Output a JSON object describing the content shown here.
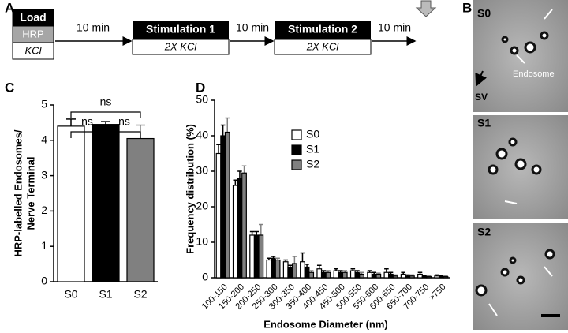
{
  "panels": [
    "A",
    "B",
    "C",
    "D"
  ],
  "protocol": {
    "load": {
      "title": "Load",
      "rows": [
        "HRP",
        "KCl"
      ]
    },
    "steps": [
      {
        "interval": "10 min",
        "title": "Stimulation 1",
        "sub": "2X KCl"
      },
      {
        "interval": "10 min",
        "title": "Stimulation 2",
        "sub": "2X KCl"
      }
    ],
    "final_interval": "10 min"
  },
  "micrographs": {
    "labels": [
      "S0",
      "S1",
      "S2"
    ],
    "annotations": [
      "Endosome",
      "SV"
    ]
  },
  "chart_data": [
    {
      "type": "bar",
      "ylabel": [
        "HRP-labelled Endosomes/",
        "Nerve Terminal"
      ],
      "categories": [
        "S0",
        "S1",
        "S2"
      ],
      "values": [
        4.4,
        4.45,
        4.05
      ],
      "errors": [
        0.2,
        0.08,
        0.38
      ],
      "colors": [
        "#ffffff",
        "#000000",
        "#808080"
      ],
      "ylim": [
        0,
        5
      ],
      "yticks": [
        0,
        1,
        2,
        3,
        4,
        5
      ],
      "annotations": [
        "ns",
        "ns",
        "ns"
      ]
    },
    {
      "type": "bar",
      "ylabel": "Frequency distribution (%)",
      "xlabel": "Endosome Diameter (nm)",
      "categories": [
        "100-150",
        "150-200",
        "200-250",
        "250-300",
        "300-350",
        "350-400",
        "400-450",
        "450-500",
        "500-550",
        "550-600",
        "600-650",
        "650-700",
        "700-750",
        ">750"
      ],
      "series": [
        {
          "name": "S0",
          "color": "#ffffff",
          "values": [
            35,
            26,
            12,
            5,
            4.5,
            4.5,
            2.5,
            2,
            2,
            1.5,
            1.5,
            1,
            1,
            0.5
          ],
          "errors": [
            2.5,
            1.5,
            1,
            0.5,
            0.5,
            2.5,
            1,
            0.5,
            0.5,
            0.5,
            1,
            0.5,
            0.5,
            0.3
          ]
        },
        {
          "name": "S1",
          "color": "#000000",
          "values": [
            40,
            28,
            12,
            5.5,
            3,
            3,
            1.5,
            1.5,
            1.5,
            1,
            1,
            0.5,
            0.3,
            0.3
          ],
          "errors": [
            3,
            2,
            1,
            0.5,
            0.5,
            0.8,
            0.5,
            0.5,
            0.5,
            0.5,
            0.5,
            0.3,
            0.2,
            0.2
          ]
        },
        {
          "name": "S2",
          "color": "#808080",
          "values": [
            41,
            29.5,
            12,
            5,
            4,
            1.5,
            1.5,
            1.5,
            1,
            1,
            0.5,
            0.5,
            0.3,
            0.3
          ],
          "errors": [
            4,
            2,
            3,
            0.5,
            2,
            0.5,
            0.5,
            0.5,
            0.5,
            0.3,
            0.3,
            0.3,
            0.2,
            0.2
          ]
        }
      ],
      "ylim": [
        0,
        50
      ],
      "yticks": [
        0,
        10,
        20,
        30,
        40,
        50
      ]
    }
  ]
}
